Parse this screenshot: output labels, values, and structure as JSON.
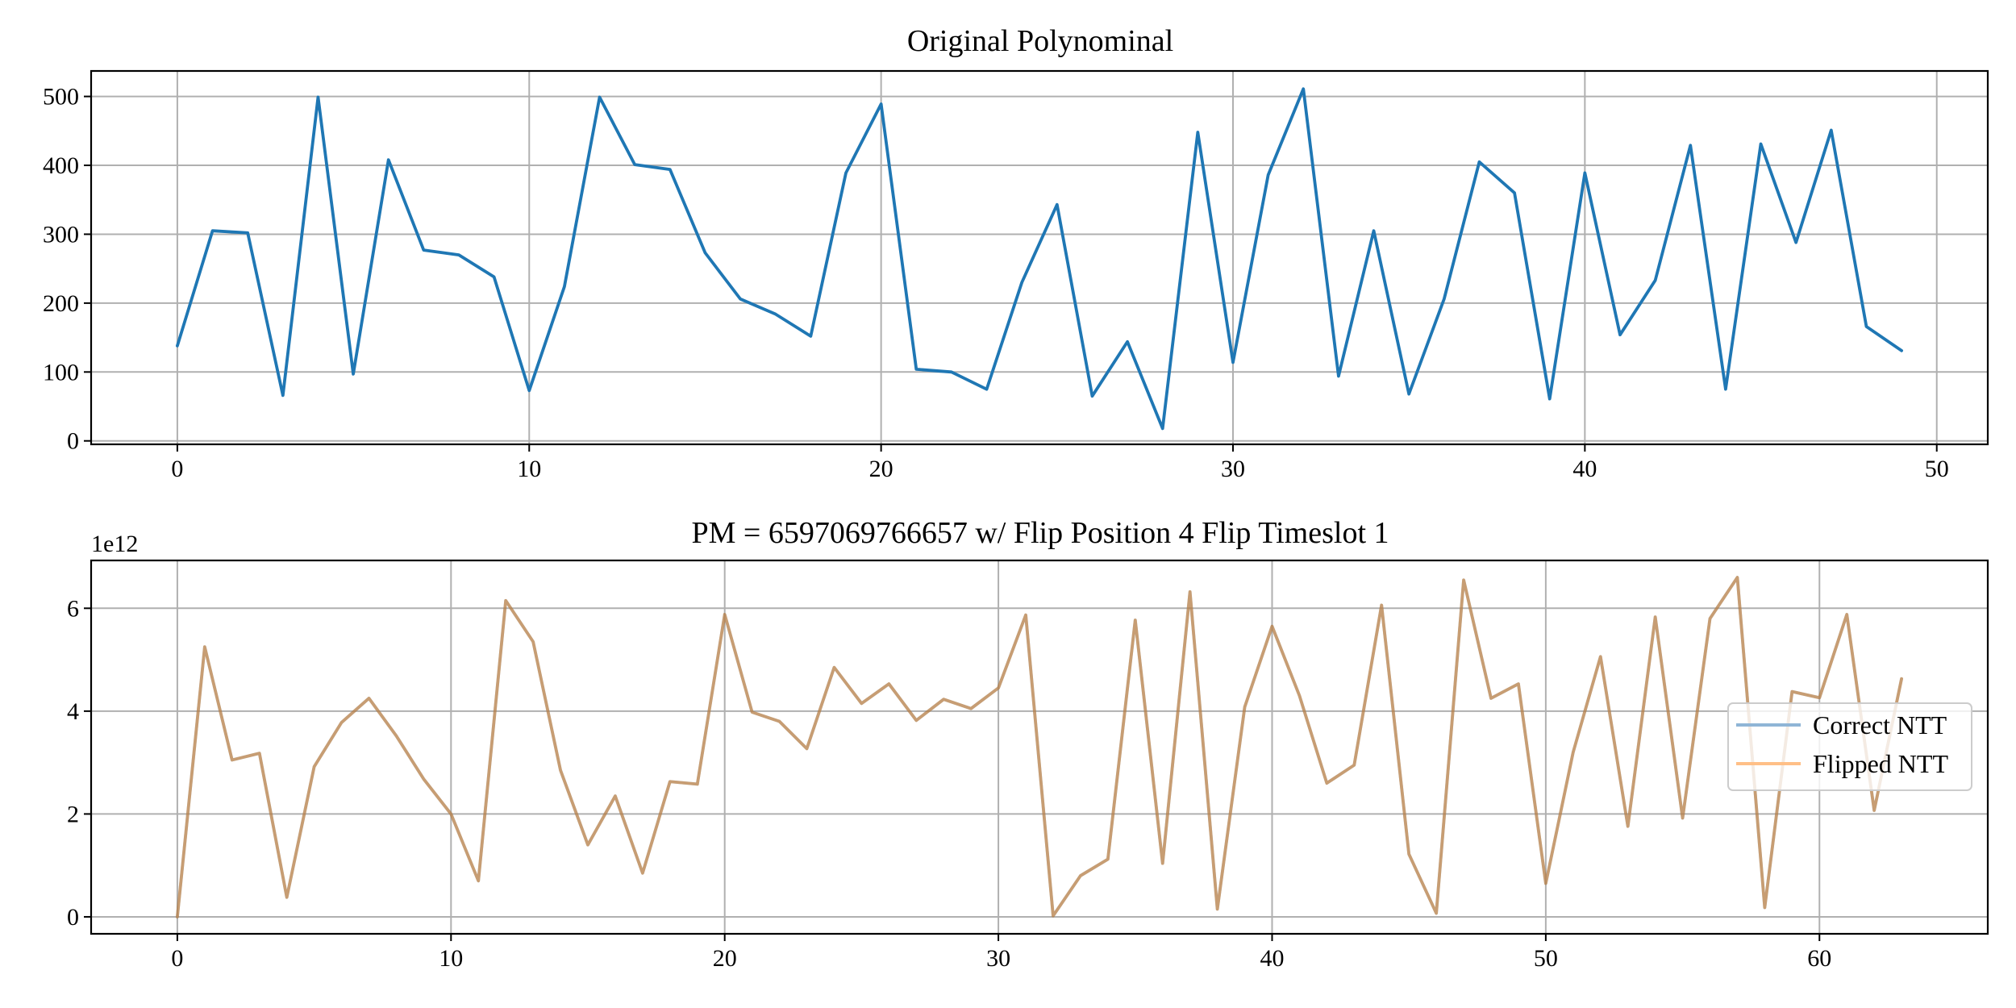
{
  "colors": {
    "series1": "#1f77b4",
    "correct": "#8fb5d6",
    "flipped": "#ffbf87",
    "overlap": "#c49a74",
    "grid": "#b0b0b0"
  },
  "chart_data": [
    {
      "type": "line",
      "title": "Original Polynominal",
      "xlabel": "",
      "ylabel": "",
      "xlim": [
        -2.45,
        51.45
      ],
      "ylim": [
        -5,
        537
      ],
      "xticks": [
        0,
        10,
        20,
        30,
        40,
        50
      ],
      "yticks": [
        0,
        100,
        200,
        300,
        400,
        500
      ],
      "grid": true,
      "series": [
        {
          "values": [
            138,
            305,
            302,
            66,
            499,
            97,
            408,
            277,
            270,
            238,
            73,
            224,
            499,
            401,
            394,
            273,
            206,
            184,
            152,
            389,
            489,
            104,
            100,
            75,
            230,
            343,
            65,
            144,
            18,
            448,
            114,
            386,
            511,
            94,
            305,
            68,
            206,
            405,
            360,
            61,
            389,
            154,
            233,
            429,
            75,
            431,
            288,
            451,
            166,
            131
          ]
        }
      ]
    },
    {
      "type": "line",
      "title": "PM = 6597069766657 w/ Flip Position 4 Flip Timeslot 1",
      "xlabel": "",
      "ylabel": "",
      "y_offset_label": "1e12",
      "xlim": [
        -3.15,
        66.15
      ],
      "ylim": [
        -0.33,
        6.93
      ],
      "xticks": [
        0,
        10,
        20,
        30,
        40,
        50,
        60
      ],
      "yticks": [
        0,
        2,
        4,
        6
      ],
      "grid": true,
      "legend_position": "right",
      "series": [
        {
          "name": "Correct NTT",
          "values": [
            0.0,
            5.25,
            3.05,
            3.18,
            0.38,
            2.92,
            3.78,
            4.25,
            3.52,
            2.68,
            2.0,
            0.7,
            6.15,
            5.35,
            2.85,
            1.4,
            2.35,
            0.85,
            2.63,
            2.58,
            5.88,
            3.98,
            3.8,
            3.27,
            4.85,
            4.15,
            4.53,
            3.82,
            4.23,
            4.05,
            4.45,
            5.87,
            0.02,
            0.8,
            1.12,
            5.77,
            1.04,
            6.32,
            0.15,
            4.08,
            5.65,
            4.3,
            2.6,
            2.95,
            6.06,
            1.22,
            0.07,
            6.55,
            4.25,
            4.53,
            0.65,
            3.2,
            5.06,
            1.76,
            5.83,
            1.92,
            5.8,
            6.6,
            0.18,
            4.38,
            4.26,
            5.88,
            2.07,
            4.63
          ]
        },
        {
          "name": "Flipped NTT",
          "values": [
            0.0,
            5.25,
            3.05,
            3.18,
            0.38,
            2.92,
            3.78,
            4.25,
            3.52,
            2.68,
            2.0,
            0.7,
            6.15,
            5.35,
            2.85,
            1.4,
            2.35,
            0.85,
            2.63,
            2.58,
            5.88,
            3.98,
            3.8,
            3.27,
            4.85,
            4.15,
            4.53,
            3.82,
            4.23,
            4.05,
            4.45,
            5.87,
            0.02,
            0.8,
            1.12,
            5.77,
            1.04,
            6.32,
            0.15,
            4.08,
            5.65,
            4.3,
            2.6,
            2.95,
            6.06,
            1.22,
            0.07,
            6.55,
            4.25,
            4.53,
            0.65,
            3.2,
            5.06,
            1.76,
            5.83,
            1.92,
            5.8,
            6.6,
            0.18,
            4.38,
            4.26,
            5.88,
            2.07,
            4.63
          ]
        }
      ]
    }
  ]
}
